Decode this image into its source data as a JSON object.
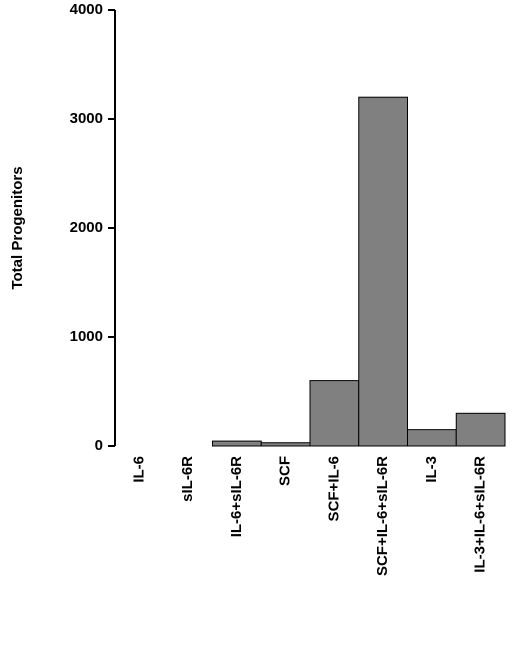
{
  "chart_data": {
    "type": "bar",
    "y_label": "Total Progenitors",
    "categories": [
      "IL-6",
      "sIL-6R",
      "IL-6+sIL-6R",
      "SCF",
      "SCF+IL-6",
      "SCF+IL-6+sIL-6R",
      "IL-3",
      "IL-3+IL-6+sIL-6R"
    ],
    "values": [
      0,
      0,
      45,
      30,
      600,
      3200,
      150,
      300
    ],
    "color": "#808080",
    "ylim": [
      0,
      4000
    ],
    "yticks": [
      0,
      1000,
      2000,
      3000,
      4000
    ],
    "grid": false
  }
}
